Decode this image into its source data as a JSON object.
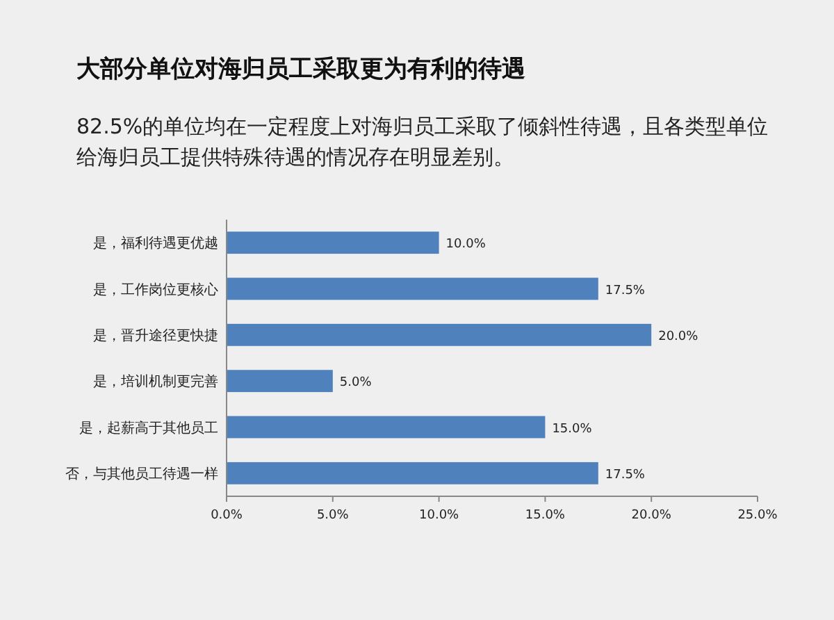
{
  "chart_data": {
    "type": "bar",
    "orientation": "horizontal",
    "title": "大部分单位对海归员工采取更为有利的待遇",
    "subtitle": "82.5%的单位均在一定程度上对海归员工采取了倾斜性待遇，且各类型单位给海归员工提供特殊待遇的情况存在明显差别。",
    "categories": [
      "是，福利待遇更优越",
      "是，工作岗位更核心",
      "是，晋升途径更快捷",
      "是，培训机制更完善",
      "是，起薪高于其他员工",
      "否，与其他员工待遇一样"
    ],
    "values": [
      10,
      17.5,
      20,
      5,
      15,
      17.5
    ],
    "value_labels": [
      "10.0%",
      "17.5%",
      "20.0%",
      "5.0%",
      "15.0%",
      "17.5%"
    ],
    "color": "#4f81bd",
    "xlim": [
      0,
      25
    ],
    "xticks": [
      {
        "value": 0,
        "label": "0.0%"
      },
      {
        "value": 5,
        "label": "5.0%"
      },
      {
        "value": 10,
        "label": "10.0%"
      },
      {
        "value": 15,
        "label": "15.0%"
      },
      {
        "value": 20,
        "label": "20.0%"
      },
      {
        "value": 25,
        "label": "25.0%"
      }
    ]
  }
}
